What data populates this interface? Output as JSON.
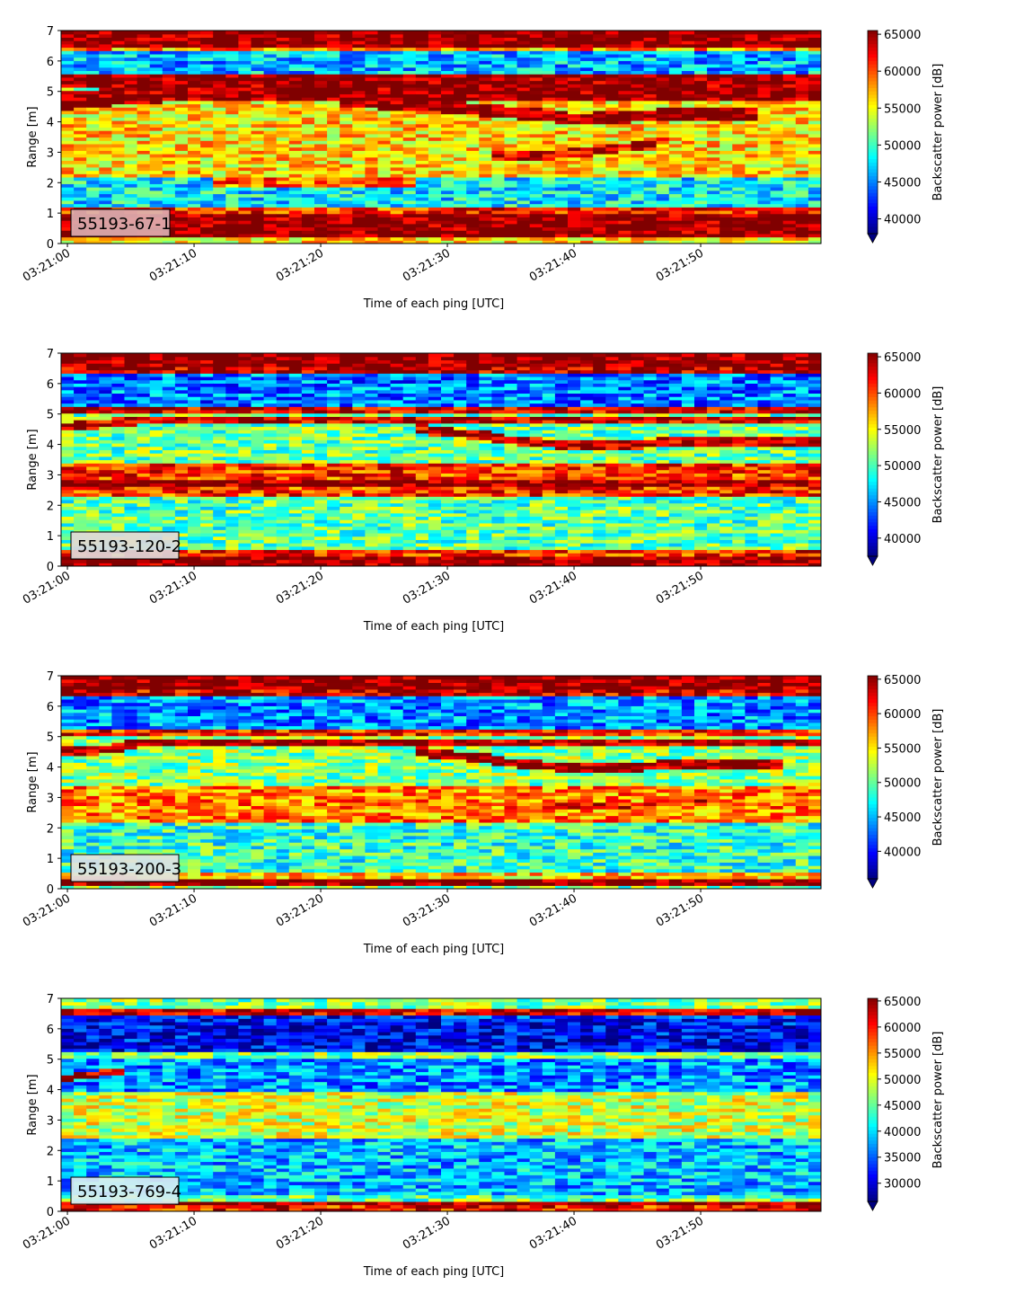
{
  "chart_data": [
    {
      "type": "heatmap",
      "label": "55193-67-1",
      "xlabel": "Time of each ping [UTC]",
      "ylabel": "Range [m]",
      "colorbar_label": "Backscatter power [dB]",
      "colormap": "jet",
      "label_box_color": "#dcaeb0",
      "x_ticks": [
        "03:21:00",
        "03:21:10",
        "03:21:20",
        "03:21:30",
        "03:21:40",
        "03:21:50"
      ],
      "y_ticks": [
        "0",
        "1",
        "2",
        "3",
        "4",
        "5",
        "6",
        "7"
      ],
      "colorbar_ticks": [
        "40000",
        "45000",
        "50000",
        "55000",
        "60000",
        "65000"
      ],
      "xlim_seconds": [
        -0.5,
        59.5
      ],
      "ylim": [
        0,
        7
      ],
      "clim": [
        38000,
        65500
      ],
      "features": [
        {
          "kind": "band",
          "y0": 0.2,
          "y1": 0.95,
          "value": 65500
        },
        {
          "kind": "band",
          "y0": 0.95,
          "y1": 1.2,
          "value": 61000
        },
        {
          "kind": "band",
          "y0": 6.5,
          "y1": 7.0,
          "value": 65500
        },
        {
          "kind": "band",
          "y0": 6.35,
          "y1": 6.5,
          "value": 58000
        },
        {
          "kind": "band",
          "y0": 5.6,
          "y1": 6.3,
          "value": 46500
        },
        {
          "kind": "band",
          "y0": 5.1,
          "y1": 5.6,
          "value": 65500
        },
        {
          "kind": "band",
          "y0": 2.2,
          "y1": 5.0,
          "value": 56000
        },
        {
          "kind": "band",
          "y0": 1.2,
          "y1": 2.2,
          "value": 48000
        },
        {
          "kind": "band",
          "y0": 0.0,
          "y1": 0.2,
          "value": 56000
        },
        {
          "kind": "path",
          "x": [
            0,
            5,
            10,
            60
          ],
          "y": [
            4.7,
            4.9,
            5.0,
            5.0
          ],
          "half_width": 0.3,
          "value": 65500
        },
        {
          "kind": "path",
          "x": [
            22,
            30,
            33,
            36,
            40,
            45,
            50,
            54,
            54.01
          ],
          "y": [
            4.7,
            4.5,
            4.4,
            4.3,
            4.1,
            4.2,
            4.3,
            4.3,
            -5
          ],
          "half_width": 0.2,
          "value": 65500
        },
        {
          "kind": "path",
          "x": [
            34,
            38,
            40,
            45,
            47,
            47.01
          ],
          "y": [
            2.9,
            2.9,
            3.0,
            3.2,
            3.4,
            -5
          ],
          "half_width": 0.15,
          "value": 63000
        },
        {
          "kind": "path",
          "x": [
            12,
            27,
            27.01
          ],
          "y": [
            2.0,
            2.0,
            -5
          ],
          "half_width": 0.15,
          "value": 59500
        }
      ]
    },
    {
      "type": "heatmap",
      "label": "55193-120-2",
      "xlabel": "Time of each ping [UTC]",
      "ylabel": "Range [m]",
      "colorbar_label": "Backscatter power [dB]",
      "colormap": "jet",
      "label_box_color": "#e0d9da",
      "x_ticks": [
        "03:21:00",
        "03:21:10",
        "03:21:20",
        "03:21:30",
        "03:21:40",
        "03:21:50"
      ],
      "y_ticks": [
        "0",
        "1",
        "2",
        "3",
        "4",
        "5",
        "6",
        "7"
      ],
      "colorbar_ticks": [
        "40000",
        "45000",
        "50000",
        "55000",
        "60000",
        "65000"
      ],
      "xlim_seconds": [
        -0.5,
        59.5
      ],
      "ylim": [
        0,
        7
      ],
      "clim": [
        37500,
        65500
      ],
      "features": [
        {
          "kind": "band",
          "y0": 0.3,
          "y1": 0.5,
          "value": 61000
        },
        {
          "kind": "band",
          "y0": 0.0,
          "y1": 0.3,
          "value": 65500
        },
        {
          "kind": "band",
          "y0": 6.6,
          "y1": 7.0,
          "value": 65500
        },
        {
          "kind": "band",
          "y0": 6.3,
          "y1": 6.6,
          "value": 64000
        },
        {
          "kind": "band",
          "y0": 5.3,
          "y1": 6.3,
          "value": 44500
        },
        {
          "kind": "band",
          "y0": 5.05,
          "y1": 5.3,
          "value": 63000
        },
        {
          "kind": "band",
          "y0": 3.4,
          "y1": 5.05,
          "value": 51000
        },
        {
          "kind": "band",
          "y0": 2.3,
          "y1": 3.4,
          "value": 60500
        },
        {
          "kind": "band",
          "y0": 0.5,
          "y1": 2.3,
          "value": 50500
        },
        {
          "kind": "path",
          "x": [
            0,
            3,
            6,
            60
          ],
          "y": [
            4.6,
            4.7,
            4.8,
            4.8
          ],
          "half_width": 0.15,
          "value": 63500
        },
        {
          "kind": "path",
          "x": [
            28,
            33,
            36,
            40,
            44,
            48,
            52,
            56,
            60
          ],
          "y": [
            4.5,
            4.3,
            4.1,
            4.0,
            4.0,
            4.1,
            4.1,
            4.1,
            4.1
          ],
          "half_width": 0.15,
          "value": 64000
        },
        {
          "kind": "path",
          "x": [
            0,
            60
          ],
          "y": [
            2.7,
            2.7
          ],
          "half_width": 0.12,
          "value": 65000
        }
      ]
    },
    {
      "type": "heatmap",
      "label": "55193-200-3",
      "xlabel": "Time of each ping [UTC]",
      "ylabel": "Range [m]",
      "colorbar_label": "Backscatter power [dB]",
      "colormap": "jet",
      "label_box_color": "#e0e2e3",
      "x_ticks": [
        "03:21:00",
        "03:21:10",
        "03:21:20",
        "03:21:30",
        "03:21:40",
        "03:21:50"
      ],
      "y_ticks": [
        "0",
        "1",
        "2",
        "3",
        "4",
        "5",
        "6",
        "7"
      ],
      "colorbar_ticks": [
        "40000",
        "45000",
        "50000",
        "55000",
        "60000",
        "65000"
      ],
      "xlim_seconds": [
        -0.5,
        59.5
      ],
      "ylim": [
        0,
        7
      ],
      "clim": [
        36000,
        65500
      ],
      "features": [
        {
          "kind": "band",
          "y0": 0.1,
          "y1": 0.35,
          "value": 65500
        },
        {
          "kind": "band",
          "y0": 0.35,
          "y1": 0.5,
          "value": 56000
        },
        {
          "kind": "band",
          "y0": 6.6,
          "y1": 7.0,
          "value": 65500
        },
        {
          "kind": "band",
          "y0": 6.3,
          "y1": 6.6,
          "value": 63000
        },
        {
          "kind": "band",
          "y0": 5.3,
          "y1": 6.3,
          "value": 44000
        },
        {
          "kind": "band",
          "y0": 5.05,
          "y1": 5.3,
          "value": 61000
        },
        {
          "kind": "band",
          "y0": 3.4,
          "y1": 5.05,
          "value": 51000
        },
        {
          "kind": "band",
          "y0": 2.2,
          "y1": 3.4,
          "value": 58000
        },
        {
          "kind": "band",
          "y0": 0.5,
          "y1": 2.2,
          "value": 48500
        },
        {
          "kind": "path",
          "x": [
            0,
            3,
            6,
            60
          ],
          "y": [
            4.5,
            4.6,
            4.8,
            4.8
          ],
          "half_width": 0.15,
          "value": 64000
        },
        {
          "kind": "path",
          "x": [
            28,
            33,
            36,
            40,
            44,
            48,
            52,
            56,
            56.01
          ],
          "y": [
            4.5,
            4.3,
            4.1,
            4.0,
            4.0,
            4.1,
            4.1,
            4.1,
            -5
          ],
          "half_width": 0.15,
          "value": 65000
        },
        {
          "kind": "path",
          "x": [
            38,
            43,
            46,
            50,
            50.01
          ],
          "y": [
            2.7,
            2.7,
            2.8,
            3.0,
            -5
          ],
          "half_width": 0.12,
          "value": 62000
        }
      ]
    },
    {
      "type": "heatmap",
      "label": "55193-769-4",
      "xlabel": "Time of each ping [UTC]",
      "ylabel": "Range [m]",
      "colorbar_label": "Backscatter power [dB]",
      "colormap": "jet",
      "label_box_color": "#d8eef2",
      "x_ticks": [
        "03:21:00",
        "03:21:10",
        "03:21:20",
        "03:21:30",
        "03:21:40",
        "03:21:50"
      ],
      "y_ticks": [
        "0",
        "1",
        "2",
        "3",
        "4",
        "5",
        "6",
        "7"
      ],
      "colorbar_ticks": [
        "30000",
        "35000",
        "40000",
        "45000",
        "50000",
        "55000",
        "60000",
        "65000"
      ],
      "xlim_seconds": [
        -0.5,
        59.5
      ],
      "ylim": [
        0,
        7
      ],
      "clim": [
        26500,
        65500
      ],
      "features": [
        {
          "kind": "band",
          "y0": 0.2,
          "y1": 0.3,
          "value": 65500
        },
        {
          "kind": "band",
          "y0": 0.0,
          "y1": 0.2,
          "value": 60000
        },
        {
          "kind": "band",
          "y0": 0.3,
          "y1": 0.5,
          "value": 45000
        },
        {
          "kind": "band",
          "y0": 6.7,
          "y1": 7.0,
          "value": 46000
        },
        {
          "kind": "band",
          "y0": 6.5,
          "y1": 6.7,
          "value": 62000
        },
        {
          "kind": "band",
          "y0": 6.3,
          "y1": 6.5,
          "value": 33000
        },
        {
          "kind": "band",
          "y0": 5.2,
          "y1": 6.3,
          "value": 31000
        },
        {
          "kind": "band",
          "y0": 5.0,
          "y1": 5.2,
          "value": 46000
        },
        {
          "kind": "band",
          "y0": 3.9,
          "y1": 5.0,
          "value": 37000
        },
        {
          "kind": "band",
          "y0": 2.4,
          "y1": 3.9,
          "value": 49000
        },
        {
          "kind": "band",
          "y0": 0.5,
          "y1": 2.4,
          "value": 38500
        },
        {
          "kind": "path",
          "x": [
            0,
            2,
            4,
            4.01
          ],
          "y": [
            4.4,
            4.5,
            4.6,
            -5
          ],
          "half_width": 0.1,
          "value": 62000
        }
      ]
    }
  ]
}
